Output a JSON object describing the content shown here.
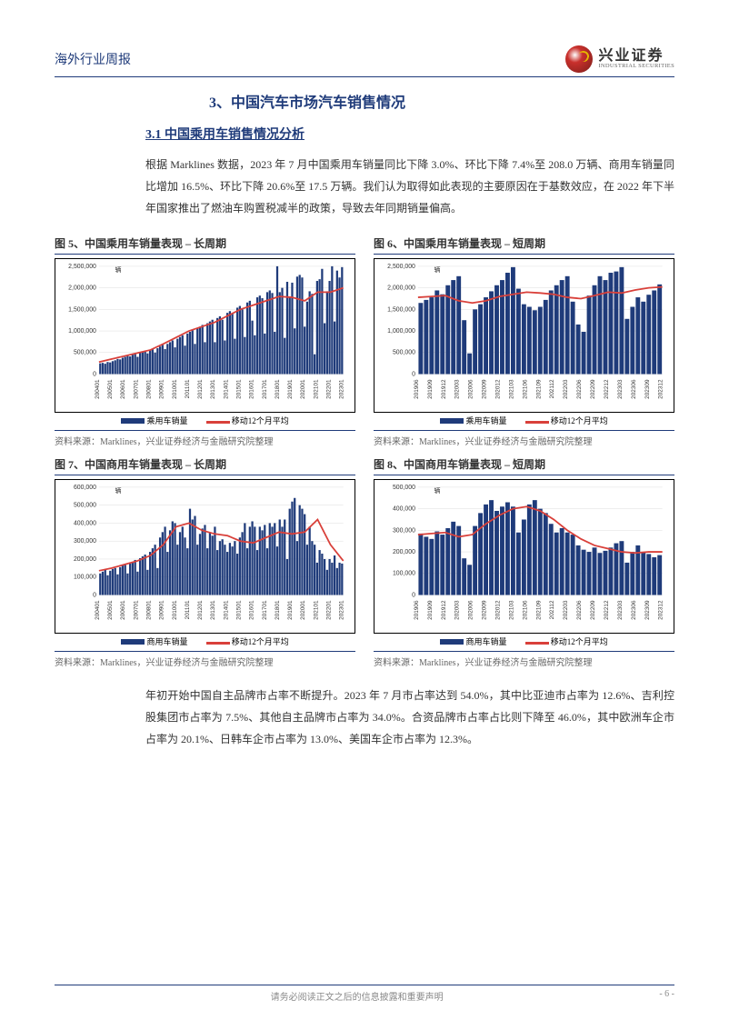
{
  "header": {
    "doc_type": "海外行业周报"
  },
  "logo": {
    "cn": "兴业证券",
    "en": "INDUSTRIAL SECURITIES"
  },
  "section": {
    "number": "3、",
    "title": "中国汽车市场汽车销售情况"
  },
  "subsection": {
    "number": "3.1",
    "title": "中国乘用车销售情况分析"
  },
  "para1": "根据 Marklines 数据，2023 年 7 月中国乘用车销量同比下降 3.0%、环比下降 7.4%至 208.0 万辆、商用车销量同比增加 16.5%、环比下降 20.6%至 17.5 万辆。我们认为取得如此表现的主要原因在于基数效应，在 2022 年下半年国家推出了燃油车购置税减半的政策，导致去年同期销量偏高。",
  "para2": "年初开始中国自主品牌市占率不断提升。2023 年 7 月市占率达到 54.0%，其中比亚迪市占率为 12.6%、吉利控股集团市占率为 7.5%、其他自主品牌市占率为 34.0%。合资品牌市占率占比则下降至 46.0%，其中欧洲车企市占率为 20.1%、日韩车企市占率为 13.0%、美国车企市占率为 12.3%。",
  "charts": {
    "colors": {
      "bar": "#1f3b7a",
      "line": "#d9403a",
      "grid": "#dddddd",
      "border": "#000000",
      "bg": "#ffffff"
    },
    "legend_bar_label": "乘用车销量",
    "legend_bar_label_comm": "商用车销量",
    "legend_line_label": "移动12个月平均",
    "c5": {
      "caption": "图 5、中国乘用车销量表现 – 长周期",
      "type": "bar+line",
      "unit": "辆",
      "ylim": [
        0,
        2500000
      ],
      "ytick_step": 500000,
      "xlabels": [
        "200401",
        "200501",
        "200601",
        "200701",
        "200801",
        "200901",
        "201001",
        "201101",
        "201201",
        "201301",
        "201401",
        "201501",
        "201601",
        "201701",
        "201801",
        "201901",
        "202001",
        "202101",
        "202201",
        "202301"
      ],
      "bars": [
        250000,
        260000,
        240000,
        280000,
        270000,
        300000,
        320000,
        350000,
        340000,
        380000,
        400000,
        420000,
        410000,
        450000,
        470000,
        400000,
        500000,
        520000,
        540000,
        480000,
        560000,
        580000,
        500000,
        600000,
        640000,
        680000,
        580000,
        700000,
        740000,
        780000,
        620000,
        820000,
        860000,
        900000,
        660000,
        940000,
        980000,
        1020000,
        700000,
        1060000,
        1100000,
        1140000,
        740000,
        1180000,
        1220000,
        1260000,
        740000,
        1300000,
        1340000,
        1260000,
        780000,
        1420000,
        1460000,
        1400000,
        820000,
        1540000,
        1580000,
        1500000,
        860000,
        1660000,
        1700000,
        1240000,
        900000,
        1780000,
        1820000,
        1760000,
        940000,
        1900000,
        1940000,
        1880000,
        980000,
        2500000,
        1900000,
        2000000,
        840000,
        2140000,
        1780000,
        2120000,
        1060000,
        2260000,
        2300000,
        2240000,
        1100000,
        1680000,
        1920000,
        1860000,
        460000,
        2160000,
        2200000,
        2440000,
        1180000,
        1920000,
        2160000,
        2500000,
        1220000,
        2400000,
        2240000,
        2480000
      ],
      "mavg12_sample": [
        280000,
        350000,
        420000,
        490000,
        560000,
        700000,
        850000,
        1000000,
        1100000,
        1200000,
        1350000,
        1500000,
        1600000,
        1700000,
        1800000,
        1780000,
        1700000,
        1900000,
        1900000,
        2000000
      ],
      "source": "资料来源：Marklines，兴业证券经济与金融研究院整理"
    },
    "c6": {
      "caption": "图 6、中国乘用车销量表现 – 短周期",
      "type": "bar+line",
      "unit": "辆",
      "ylim": [
        0,
        2500000
      ],
      "ytick_step": 500000,
      "xlabels": [
        "201906",
        "201909",
        "201912",
        "202003",
        "202006",
        "202009",
        "202012",
        "202103",
        "202106",
        "202109",
        "202112",
        "202203",
        "202206",
        "202209",
        "202212",
        "202303",
        "202306",
        "202309",
        "202312"
      ],
      "bars": [
        1650000,
        1720000,
        1780000,
        1940000,
        1850000,
        2060000,
        2180000,
        2270000,
        1250000,
        480000,
        1500000,
        1620000,
        1780000,
        1920000,
        2060000,
        2180000,
        2350000,
        2480000,
        1980000,
        1620000,
        1560000,
        1480000,
        1560000,
        1720000,
        1940000,
        2060000,
        2180000,
        2270000,
        1680000,
        1150000,
        980000,
        1820000,
        2060000,
        2270000,
        2180000,
        2350000,
        2380000,
        2480000,
        1280000,
        1560000,
        1780000,
        1680000,
        1840000,
        1940000,
        2080000
      ],
      "mavg12_sample": [
        1780000,
        1800000,
        1820000,
        1700000,
        1650000,
        1700000,
        1800000,
        1850000,
        1900000,
        1880000,
        1850000,
        1780000,
        1750000,
        1820000,
        1900000,
        1880000,
        1950000,
        2000000,
        2020000
      ],
      "source": "资料来源：Marklines，兴业证券经济与金融研究院整理"
    },
    "c7": {
      "caption": "图 7、中国商用车销量表现 – 长周期",
      "type": "bar+line",
      "unit": "辆",
      "ylim": [
        0,
        600000
      ],
      "ytick_step": 100000,
      "xlabels": [
        "200401",
        "200501",
        "200601",
        "200701",
        "200801",
        "200901",
        "201001",
        "201101",
        "201201",
        "201301",
        "201401",
        "201501",
        "201601",
        "201701",
        "201801",
        "201901",
        "202001",
        "202101",
        "202201",
        "202301"
      ],
      "bars": [
        120000,
        130000,
        140000,
        110000,
        135000,
        145000,
        150000,
        115000,
        155000,
        165000,
        170000,
        120000,
        175000,
        185000,
        195000,
        130000,
        205000,
        215000,
        225000,
        140000,
        240000,
        260000,
        280000,
        150000,
        320000,
        350000,
        380000,
        240000,
        360000,
        410000,
        400000,
        280000,
        350000,
        380000,
        320000,
        260000,
        480000,
        420000,
        440000,
        280000,
        340000,
        370000,
        390000,
        260000,
        350000,
        330000,
        380000,
        250000,
        300000,
        310000,
        280000,
        240000,
        290000,
        270000,
        300000,
        230000,
        320000,
        350000,
        400000,
        260000,
        380000,
        410000,
        380000,
        250000,
        380000,
        360000,
        390000,
        260000,
        400000,
        380000,
        400000,
        270000,
        420000,
        380000,
        420000,
        200000,
        480000,
        520000,
        540000,
        300000,
        500000,
        480000,
        450000,
        280000,
        380000,
        300000,
        280000,
        180000,
        250000,
        230000,
        200000,
        140000,
        200000,
        180000,
        220000,
        150000,
        180000,
        175000
      ],
      "mavg12_sample": [
        135000,
        150000,
        170000,
        190000,
        220000,
        280000,
        380000,
        400000,
        360000,
        340000,
        330000,
        300000,
        290000,
        320000,
        350000,
        340000,
        350000,
        420000,
        280000,
        190000
      ],
      "source": "资料来源：Marklines，兴业证券经济与金融研究院整理"
    },
    "c8": {
      "caption": "图 8、中国商用车销量表现 – 短周期",
      "type": "bar+line",
      "unit": "辆",
      "ylim": [
        0,
        500000
      ],
      "ytick_step": 100000,
      "xlabels": [
        "201906",
        "201909",
        "201912",
        "202003",
        "202006",
        "202009",
        "202012",
        "202103",
        "202106",
        "202109",
        "202112",
        "202203",
        "202206",
        "202209",
        "202212",
        "202303",
        "202306",
        "202309",
        "202312"
      ],
      "bars": [
        285000,
        270000,
        260000,
        295000,
        280000,
        310000,
        340000,
        320000,
        170000,
        140000,
        320000,
        380000,
        420000,
        440000,
        390000,
        410000,
        430000,
        410000,
        290000,
        350000,
        420000,
        440000,
        400000,
        380000,
        330000,
        290000,
        310000,
        290000,
        280000,
        230000,
        210000,
        200000,
        220000,
        195000,
        205000,
        220000,
        240000,
        250000,
        150000,
        200000,
        230000,
        200000,
        190000,
        175000,
        185000
      ],
      "mavg12_sample": [
        280000,
        285000,
        290000,
        270000,
        280000,
        330000,
        370000,
        400000,
        410000,
        390000,
        350000,
        300000,
        260000,
        230000,
        215000,
        200000,
        195000,
        200000,
        200000
      ],
      "source": "资料来源：Marklines，兴业证券经济与金融研究院整理"
    }
  },
  "footer": {
    "disclaimer": "请务必阅读正文之后的信息披露和重要声明",
    "page": "- 6 -"
  }
}
